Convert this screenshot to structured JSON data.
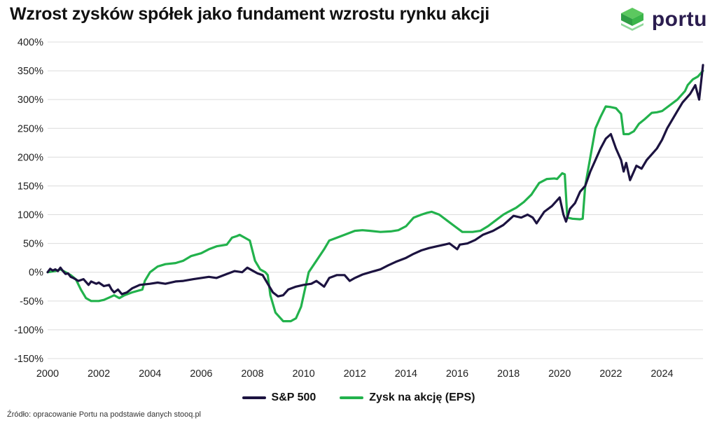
{
  "title": "Wzrost zysków spółek jako fundament wzrostu rynku akcji",
  "brand": {
    "name": "portu",
    "color": "#3bb54a"
  },
  "source": "Źródło: opracowanie Portu na podstawie danych stooq.pl",
  "chart_data": {
    "type": "line",
    "title": "Wzrost zysków spółek jako fundament wzrostu rynku akcji",
    "xlabel": "",
    "ylabel": "",
    "xlim": [
      2000,
      2025.6
    ],
    "ylim": [
      -150,
      400
    ],
    "x_ticks": [
      "2000",
      "2002",
      "2004",
      "2006",
      "2008",
      "2010",
      "2012",
      "2014",
      "2016",
      "2018",
      "2020",
      "2022",
      "2024"
    ],
    "y_ticks": [
      "400%",
      "350%",
      "300%",
      "250%",
      "200%",
      "150%",
      "100%",
      "50%",
      "0%",
      "-50%",
      "-100%",
      "-150%"
    ],
    "grid": "horizontal",
    "legend_position": "bottom-center",
    "series": [
      {
        "name": "S&P 500",
        "color": "#1c1340",
        "x": [
          2000,
          2000.1,
          2000.2,
          2000.3,
          2000.4,
          2000.5,
          2000.6,
          2000.7,
          2000.8,
          2000.9,
          2001.0,
          2001.2,
          2001.4,
          2001.6,
          2001.7,
          2001.9,
          2002.0,
          2002.2,
          2002.4,
          2002.5,
          2002.6,
          2002.75,
          2002.9,
          2003.1,
          2003.3,
          2003.6,
          2004.0,
          2004.3,
          2004.6,
          2005.0,
          2005.3,
          2005.7,
          2006.0,
          2006.3,
          2006.6,
          2007.0,
          2007.3,
          2007.6,
          2007.8,
          2008.0,
          2008.2,
          2008.4,
          2008.6,
          2008.8,
          2009.0,
          2009.2,
          2009.4,
          2009.7,
          2010.0,
          2010.3,
          2010.5,
          2010.8,
          2011.0,
          2011.3,
          2011.6,
          2011.8,
          2012.0,
          2012.3,
          2012.6,
          2013.0,
          2013.3,
          2013.6,
          2014.0,
          2014.3,
          2014.6,
          2014.9,
          2015.2,
          2015.5,
          2015.7,
          2016.0,
          2016.1,
          2016.4,
          2016.7,
          2017.0,
          2017.4,
          2017.8,
          2018.0,
          2018.2,
          2018.5,
          2018.75,
          2018.95,
          2019.1,
          2019.4,
          2019.7,
          2020.0,
          2020.15,
          2020.25,
          2020.4,
          2020.6,
          2020.8,
          2021.0,
          2021.2,
          2021.4,
          2021.6,
          2021.8,
          2022.0,
          2022.2,
          2022.4,
          2022.5,
          2022.6,
          2022.75,
          2022.9,
          2023.0,
          2023.2,
          2023.4,
          2023.6,
          2023.8,
          2024.0,
          2024.2,
          2024.4,
          2024.6,
          2024.8,
          2025.0,
          2025.1,
          2025.3,
          2025.45,
          2025.6
        ],
        "values": [
          0,
          6,
          3,
          5,
          2,
          8,
          2,
          -3,
          -2,
          -8,
          -10,
          -15,
          -12,
          -22,
          -16,
          -20,
          -18,
          -24,
          -22,
          -30,
          -35,
          -30,
          -38,
          -35,
          -28,
          -22,
          -20,
          -18,
          -20,
          -16,
          -15,
          -12,
          -10,
          -8,
          -10,
          -3,
          2,
          0,
          8,
          3,
          -2,
          -5,
          -20,
          -35,
          -42,
          -40,
          -30,
          -25,
          -22,
          -20,
          -15,
          -25,
          -10,
          -5,
          -5,
          -15,
          -10,
          -4,
          0,
          5,
          12,
          18,
          25,
          32,
          38,
          42,
          45,
          48,
          50,
          40,
          48,
          50,
          56,
          65,
          72,
          82,
          90,
          98,
          95,
          100,
          95,
          85,
          105,
          115,
          130,
          100,
          88,
          110,
          120,
          140,
          150,
          175,
          195,
          215,
          232,
          240,
          215,
          195,
          175,
          190,
          160,
          175,
          185,
          180,
          195,
          205,
          215,
          230,
          250,
          265,
          280,
          295,
          305,
          310,
          325,
          300,
          360
        ]
      },
      {
        "name": "Zysk na akcję (EPS)",
        "color": "#22b24c",
        "x": [
          2000,
          2000.3,
          2000.5,
          2000.7,
          2000.9,
          2001.1,
          2001.3,
          2001.5,
          2001.7,
          2002.0,
          2002.2,
          2002.4,
          2002.6,
          2002.8,
          2003.0,
          2003.3,
          2003.7,
          2003.8,
          2004.0,
          2004.3,
          2004.6,
          2005.0,
          2005.3,
          2005.6,
          2006.0,
          2006.3,
          2006.6,
          2007.0,
          2007.2,
          2007.4,
          2007.5,
          2007.7,
          2007.9,
          2008.1,
          2008.3,
          2008.5,
          2008.6,
          2008.7,
          2008.9,
          2009.0,
          2009.2,
          2009.5,
          2009.7,
          2009.9,
          2010.2,
          2010.5,
          2010.8,
          2011.0,
          2011.3,
          2011.6,
          2012.0,
          2012.3,
          2012.6,
          2013.0,
          2013.4,
          2013.7,
          2014.0,
          2014.3,
          2014.6,
          2014.8,
          2015.0,
          2015.3,
          2015.6,
          2015.9,
          2016.2,
          2016.6,
          2016.9,
          2017.2,
          2017.5,
          2017.8,
          2018.0,
          2018.3,
          2018.6,
          2018.9,
          2019.2,
          2019.5,
          2019.8,
          2019.9,
          2020.1,
          2020.2,
          2020.3,
          2020.5,
          2020.8,
          2020.9,
          2021.0,
          2021.2,
          2021.4,
          2021.6,
          2021.8,
          2022.0,
          2022.2,
          2022.4,
          2022.5,
          2022.7,
          2022.9,
          2023.1,
          2023.3,
          2023.6,
          2023.8,
          2024.0,
          2024.3,
          2024.6,
          2024.9,
          2025.0,
          2025.2,
          2025.4,
          2025.6
        ],
        "values": [
          0,
          2,
          5,
          0,
          -5,
          -12,
          -30,
          -45,
          -50,
          -50,
          -48,
          -44,
          -40,
          -45,
          -40,
          -35,
          -30,
          -15,
          0,
          10,
          14,
          16,
          20,
          28,
          33,
          40,
          45,
          48,
          60,
          63,
          65,
          60,
          55,
          20,
          5,
          0,
          -5,
          -40,
          -70,
          -75,
          -85,
          -85,
          -80,
          -60,
          0,
          20,
          40,
          55,
          60,
          65,
          72,
          73,
          72,
          70,
          71,
          73,
          80,
          95,
          100,
          103,
          105,
          100,
          90,
          80,
          70,
          70,
          72,
          80,
          90,
          100,
          105,
          112,
          122,
          135,
          155,
          162,
          163,
          162,
          172,
          170,
          95,
          93,
          92,
          93,
          150,
          200,
          250,
          270,
          288,
          287,
          285,
          275,
          240,
          240,
          245,
          258,
          265,
          277,
          278,
          280,
          290,
          300,
          315,
          325,
          335,
          340,
          350
        ]
      }
    ]
  }
}
